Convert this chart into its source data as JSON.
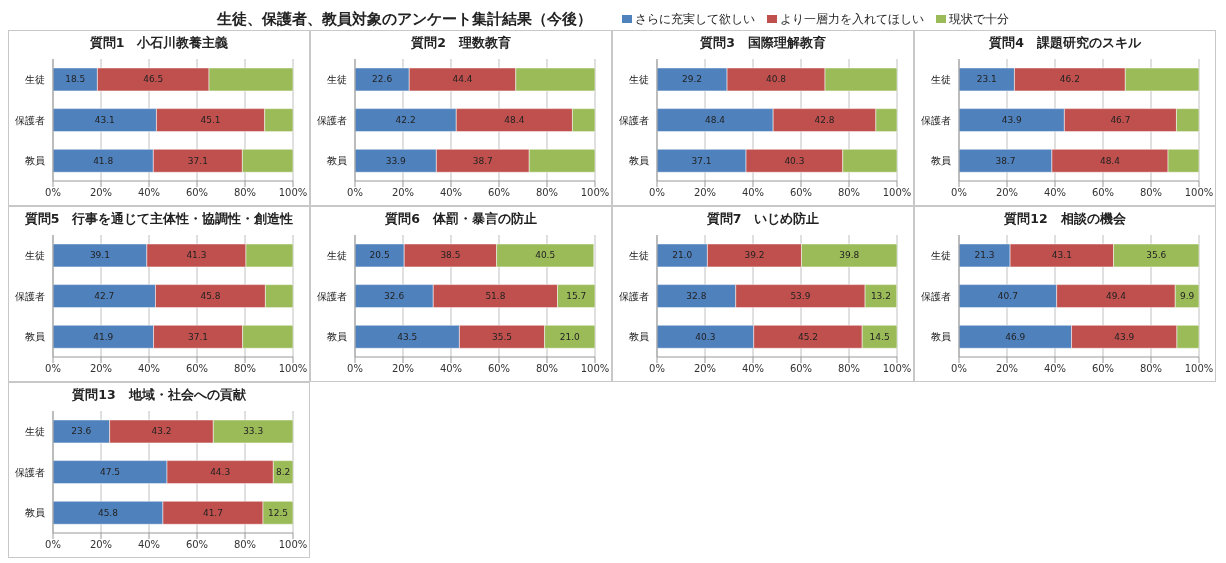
{
  "chart_data": [
    {
      "type": "other",
      "title": "生徒、保護者、教員対象のアンケート集計結果（今後）"
    },
    {
      "type": "bar",
      "orientation": "horizontal",
      "stacked": true,
      "title": "質問1　小石川教養主義",
      "categories": [
        "生徒",
        "保護者",
        "教員"
      ],
      "xlim": [
        0,
        100
      ],
      "xticks": [
        {
          "value": 0,
          "label": "0%"
        },
        {
          "value": 20,
          "label": "20%"
        },
        {
          "value": 40,
          "label": "40%"
        },
        {
          "value": 60,
          "label": "60%"
        },
        {
          "value": 80,
          "label": "80%"
        },
        {
          "value": 100,
          "label": "100%"
        }
      ],
      "grid": "x",
      "legend": "top",
      "series": [
        {
          "name": "さらに充実して欲しい",
          "color": "#4f81bd",
          "values": [
            18.5,
            43.1,
            41.8
          ],
          "value_labels": [
            "18.5",
            "43.1",
            "41.8"
          ]
        },
        {
          "name": "より一層力を入れてほしい",
          "color": "#c0504d",
          "values": [
            46.5,
            45.1,
            37.1
          ],
          "value_labels": [
            "46.5",
            "45.1",
            "37.1"
          ]
        },
        {
          "name": "現状で十分",
          "color": "#9bbb59",
          "values": [
            35.0,
            11.8,
            21.1
          ],
          "value_labels": [
            null,
            null,
            null
          ]
        }
      ]
    },
    {
      "type": "bar",
      "orientation": "horizontal",
      "stacked": true,
      "title": "質問2　理数教育",
      "categories": [
        "生徒",
        "保護者",
        "教員"
      ],
      "xlim": [
        0,
        100
      ],
      "xticks": [
        {
          "value": 0,
          "label": "0%"
        },
        {
          "value": 20,
          "label": "20%"
        },
        {
          "value": 40,
          "label": "40%"
        },
        {
          "value": 60,
          "label": "60%"
        },
        {
          "value": 80,
          "label": "80%"
        },
        {
          "value": 100,
          "label": "100%"
        }
      ],
      "grid": "x",
      "series": [
        {
          "color": "#4f81bd",
          "values": [
            22.6,
            42.2,
            33.9
          ],
          "value_labels": [
            "22.6",
            "42.2",
            "33.9"
          ]
        },
        {
          "color": "#c0504d",
          "values": [
            44.4,
            48.4,
            38.7
          ],
          "value_labels": [
            "44.4",
            "48.4",
            "38.7"
          ]
        },
        {
          "color": "#9bbb59",
          "values": [
            33.0,
            9.4,
            27.4
          ],
          "value_labels": [
            null,
            null,
            null
          ]
        }
      ]
    },
    {
      "type": "bar",
      "orientation": "horizontal",
      "stacked": true,
      "title": "質問3　国際理解教育",
      "categories": [
        "生徒",
        "保護者",
        "教員"
      ],
      "xlim": [
        0,
        100
      ],
      "xticks": [
        {
          "value": 0,
          "label": "0%"
        },
        {
          "value": 20,
          "label": "20%"
        },
        {
          "value": 40,
          "label": "40%"
        },
        {
          "value": 60,
          "label": "60%"
        },
        {
          "value": 80,
          "label": "80%"
        },
        {
          "value": 100,
          "label": "100%"
        }
      ],
      "grid": "x",
      "series": [
        {
          "color": "#4f81bd",
          "values": [
            29.2,
            48.4,
            37.1
          ],
          "value_labels": [
            "29.2",
            "48.4",
            "37.1"
          ]
        },
        {
          "color": "#c0504d",
          "values": [
            40.8,
            42.8,
            40.3
          ],
          "value_labels": [
            "40.8",
            "42.8",
            "40.3"
          ]
        },
        {
          "color": "#9bbb59",
          "values": [
            30.0,
            8.8,
            22.6
          ],
          "value_labels": [
            null,
            null,
            null
          ]
        }
      ]
    },
    {
      "type": "bar",
      "orientation": "horizontal",
      "stacked": true,
      "title": "質問4　課題研究のスキル",
      "categories": [
        "生徒",
        "保護者",
        "教員"
      ],
      "xlim": [
        0,
        100
      ],
      "xticks": [
        {
          "value": 0,
          "label": "0%"
        },
        {
          "value": 20,
          "label": "20%"
        },
        {
          "value": 40,
          "label": "40%"
        },
        {
          "value": 60,
          "label": "60%"
        },
        {
          "value": 80,
          "label": "80%"
        },
        {
          "value": 100,
          "label": "100%"
        }
      ],
      "grid": "x",
      "series": [
        {
          "color": "#4f81bd",
          "values": [
            23.1,
            43.9,
            38.7
          ],
          "value_labels": [
            "23.1",
            "43.9",
            "38.7"
          ]
        },
        {
          "color": "#c0504d",
          "values": [
            46.2,
            46.7,
            48.4
          ],
          "value_labels": [
            "46.2",
            "46.7",
            "48.4"
          ]
        },
        {
          "color": "#9bbb59",
          "values": [
            30.7,
            9.4,
            12.9
          ],
          "value_labels": [
            null,
            null,
            null
          ]
        }
      ]
    },
    {
      "type": "bar",
      "orientation": "horizontal",
      "stacked": true,
      "title": "質問5　行事を通じて主体性・協調性・創造性",
      "categories": [
        "生徒",
        "保護者",
        "教員"
      ],
      "xlim": [
        0,
        100
      ],
      "xticks": [
        {
          "value": 0,
          "label": "0%"
        },
        {
          "value": 20,
          "label": "20%"
        },
        {
          "value": 40,
          "label": "40%"
        },
        {
          "value": 60,
          "label": "60%"
        },
        {
          "value": 80,
          "label": "80%"
        },
        {
          "value": 100,
          "label": "100%"
        }
      ],
      "grid": "x",
      "series": [
        {
          "color": "#4f81bd",
          "values": [
            39.1,
            42.7,
            41.9
          ],
          "value_labels": [
            "39.1",
            "42.7",
            "41.9"
          ]
        },
        {
          "color": "#c0504d",
          "values": [
            41.3,
            45.8,
            37.1
          ],
          "value_labels": [
            "41.3",
            "45.8",
            "37.1"
          ]
        },
        {
          "color": "#9bbb59",
          "values": [
            19.6,
            11.5,
            21.0
          ],
          "value_labels": [
            null,
            null,
            null
          ]
        }
      ]
    },
    {
      "type": "bar",
      "orientation": "horizontal",
      "stacked": true,
      "title": "質問6　体罰・暴言の防止",
      "categories": [
        "生徒",
        "保護者",
        "教員"
      ],
      "xlim": [
        0,
        100
      ],
      "xticks": [
        {
          "value": 0,
          "label": "0%"
        },
        {
          "value": 20,
          "label": "20%"
        },
        {
          "value": 40,
          "label": "40%"
        },
        {
          "value": 60,
          "label": "60%"
        },
        {
          "value": 80,
          "label": "80%"
        },
        {
          "value": 100,
          "label": "100%"
        }
      ],
      "grid": "x",
      "series": [
        {
          "color": "#4f81bd",
          "values": [
            20.5,
            32.6,
            43.5
          ],
          "value_labels": [
            "20.5",
            "32.6",
            "43.5"
          ]
        },
        {
          "color": "#c0504d",
          "values": [
            38.5,
            51.8,
            35.5
          ],
          "value_labels": [
            "38.5",
            "51.8",
            "35.5"
          ]
        },
        {
          "color": "#9bbb59",
          "values": [
            40.5,
            15.7,
            21.0
          ],
          "value_labels": [
            "40.5",
            "15.7",
            "21.0"
          ]
        }
      ]
    },
    {
      "type": "bar",
      "orientation": "horizontal",
      "stacked": true,
      "title": "質問7　いじめ防止",
      "categories": [
        "生徒",
        "保護者",
        "教員"
      ],
      "xlim": [
        0,
        100
      ],
      "xticks": [
        {
          "value": 0,
          "label": "0%"
        },
        {
          "value": 20,
          "label": "20%"
        },
        {
          "value": 40,
          "label": "40%"
        },
        {
          "value": 60,
          "label": "60%"
        },
        {
          "value": 80,
          "label": "80%"
        },
        {
          "value": 100,
          "label": "100%"
        }
      ],
      "grid": "x",
      "series": [
        {
          "color": "#4f81bd",
          "values": [
            21.0,
            32.8,
            40.3
          ],
          "value_labels": [
            "21.0",
            "32.8",
            "40.3"
          ]
        },
        {
          "color": "#c0504d",
          "values": [
            39.2,
            53.9,
            45.2
          ],
          "value_labels": [
            "39.2",
            "53.9",
            "45.2"
          ]
        },
        {
          "color": "#9bbb59",
          "values": [
            39.8,
            13.2,
            14.5
          ],
          "value_labels": [
            "39.8",
            "13.2",
            "14.5"
          ]
        }
      ]
    },
    {
      "type": "bar",
      "orientation": "horizontal",
      "stacked": true,
      "title": "質問12　相談の機会",
      "categories": [
        "生徒",
        "保護者",
        "教員"
      ],
      "xlim": [
        0,
        100
      ],
      "xticks": [
        {
          "value": 0,
          "label": "0%"
        },
        {
          "value": 20,
          "label": "20%"
        },
        {
          "value": 40,
          "label": "40%"
        },
        {
          "value": 60,
          "label": "60%"
        },
        {
          "value": 80,
          "label": "80%"
        },
        {
          "value": 100,
          "label": "100%"
        }
      ],
      "grid": "x",
      "series": [
        {
          "color": "#4f81bd",
          "values": [
            21.3,
            40.7,
            46.9
          ],
          "value_labels": [
            "21.3",
            "40.7",
            "46.9"
          ]
        },
        {
          "color": "#c0504d",
          "values": [
            43.1,
            49.4,
            43.9
          ],
          "value_labels": [
            "43.1",
            "49.4",
            "43.9"
          ]
        },
        {
          "color": "#9bbb59",
          "values": [
            35.6,
            9.9,
            9.2
          ],
          "value_labels": [
            "35.6",
            "9.9",
            null
          ]
        }
      ]
    },
    {
      "type": "bar",
      "orientation": "horizontal",
      "stacked": true,
      "title": "質問13　地域・社会への貢献",
      "categories": [
        "生徒",
        "保護者",
        "教員"
      ],
      "xlim": [
        0,
        100
      ],
      "xticks": [
        {
          "value": 0,
          "label": "0%"
        },
        {
          "value": 20,
          "label": "20%"
        },
        {
          "value": 40,
          "label": "40%"
        },
        {
          "value": 60,
          "label": "60%"
        },
        {
          "value": 80,
          "label": "80%"
        },
        {
          "value": 100,
          "label": "100%"
        }
      ],
      "grid": "x",
      "series": [
        {
          "color": "#4f81bd",
          "values": [
            23.6,
            47.5,
            45.8
          ],
          "value_labels": [
            "23.6",
            "47.5",
            "45.8"
          ]
        },
        {
          "color": "#c0504d",
          "values": [
            43.2,
            44.3,
            41.7
          ],
          "value_labels": [
            "43.2",
            "44.3",
            "41.7"
          ]
        },
        {
          "color": "#9bbb59",
          "values": [
            33.3,
            8.2,
            12.5
          ],
          "value_labels": [
            "33.3",
            "8.2",
            "12.5"
          ]
        }
      ]
    }
  ]
}
